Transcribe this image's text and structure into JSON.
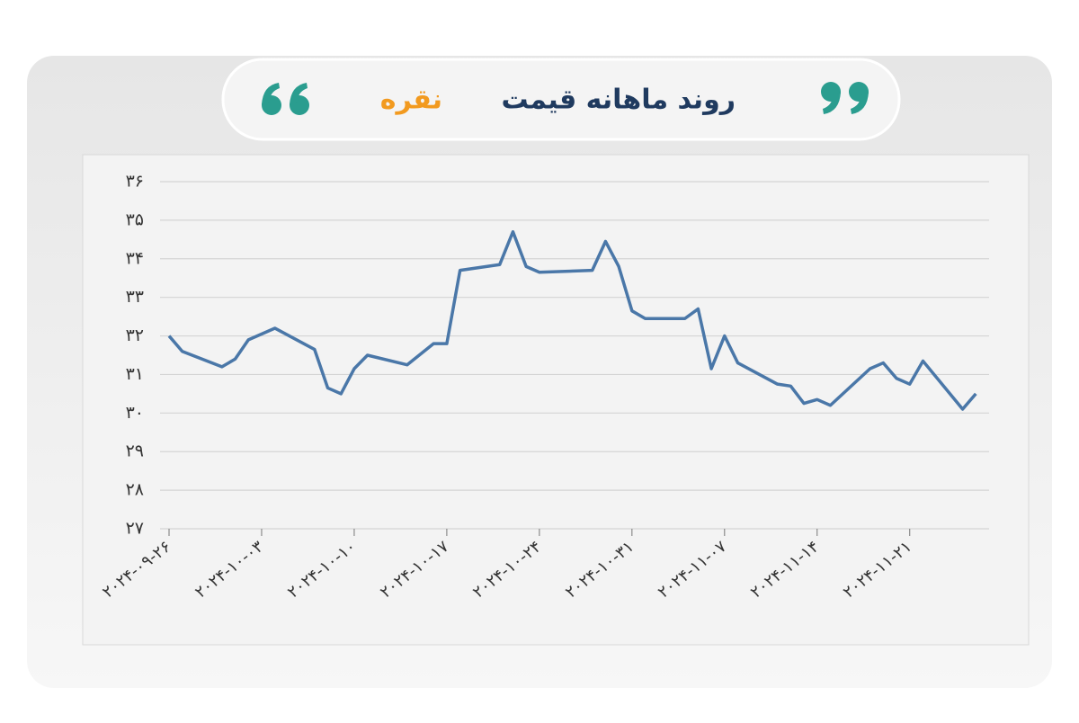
{
  "chart_data": {
    "type": "line",
    "title": "روند ماهانه قیمت",
    "title_highlight": "نقره",
    "x": [
      "2024-09-26",
      "2024-09-27",
      "2024-09-30",
      "2024-10-01",
      "2024-10-02",
      "2024-10-04",
      "2024-10-07",
      "2024-10-08",
      "2024-10-09",
      "2024-10-10",
      "2024-10-11",
      "2024-10-14",
      "2024-10-16",
      "2024-10-17",
      "2024-10-18",
      "2024-10-21",
      "2024-10-22",
      "2024-10-23",
      "2024-10-24",
      "2024-10-28",
      "2024-10-29",
      "2024-10-30",
      "2024-10-31",
      "2024-11-01",
      "2024-11-04",
      "2024-11-05",
      "2024-11-06",
      "2024-11-07",
      "2024-11-08",
      "2024-11-11",
      "2024-11-12",
      "2024-11-13",
      "2024-11-14",
      "2024-11-15",
      "2024-11-18",
      "2024-11-19",
      "2024-11-20",
      "2024-11-21",
      "2024-11-22",
      "2024-11-25",
      "2024-11-26"
    ],
    "series": [
      {
        "color": "#4a77a8",
        "values": [
          32.0,
          31.6,
          31.2,
          31.4,
          31.9,
          32.2,
          31.65,
          30.65,
          30.5,
          31.15,
          31.5,
          31.25,
          31.8,
          31.8,
          33.7,
          33.85,
          34.7,
          33.8,
          33.65,
          33.7,
          34.45,
          33.8,
          32.65,
          32.45,
          32.45,
          32.7,
          31.15,
          32.0,
          31.3,
          30.75,
          30.7,
          30.25,
          30.35,
          30.2,
          31.15,
          31.3,
          30.9,
          30.75,
          31.35,
          30.1,
          30.5
        ]
      }
    ],
    "xlim": [
      "2024-09-26",
      "2024-11-27"
    ],
    "xticks": [
      {
        "value": "2024-09-26",
        "label": "۲۰۲۴-۰۹-۲۶"
      },
      {
        "value": "2024-10-03",
        "label": "۲۰۲۴-۱۰-۰۳"
      },
      {
        "value": "2024-10-10",
        "label": "۲۰۲۴-۱۰-۱۰"
      },
      {
        "value": "2024-10-17",
        "label": "۲۰۲۴-۱۰-۱۷"
      },
      {
        "value": "2024-10-24",
        "label": "۲۰۲۴-۱۰-۲۴"
      },
      {
        "value": "2024-10-31",
        "label": "۲۰۲۴-۱۰-۳۱"
      },
      {
        "value": "2024-11-07",
        "label": "۲۰۲۴-۱۱-۰۷"
      },
      {
        "value": "2024-11-14",
        "label": "۲۰۲۴-۱۱-۱۴"
      },
      {
        "value": "2024-11-21",
        "label": "۲۰۲۴-۱۱-۲۱"
      }
    ],
    "ylim": [
      27,
      36
    ],
    "yticks": [
      {
        "value": 27,
        "label": "۲۷"
      },
      {
        "value": 28,
        "label": "۲۸"
      },
      {
        "value": 29,
        "label": "۲۹"
      },
      {
        "value": 30,
        "label": "۳۰"
      },
      {
        "value": 31,
        "label": "۳۱"
      },
      {
        "value": 32,
        "label": "۳۲"
      },
      {
        "value": 33,
        "label": "۳۳"
      },
      {
        "value": 34,
        "label": "۳۴"
      },
      {
        "value": 35,
        "label": "۳۵"
      },
      {
        "value": 36,
        "label": "۳۶"
      }
    ],
    "grid": true
  }
}
